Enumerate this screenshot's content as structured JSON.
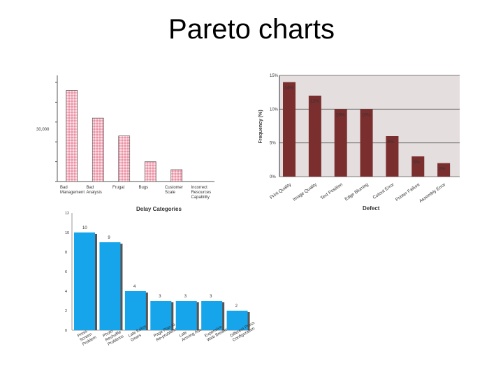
{
  "title": "Pareto charts",
  "chart_data": [
    {
      "type": "bar",
      "title": "",
      "categories": [
        "Bad Management",
        "Bad Analysis",
        "Frugal",
        "Bugs",
        "Customer Scale",
        "Incorrect Resources Capability"
      ],
      "tick_labels": [
        "Bad\nManagement",
        "Bad\nAnalysis",
        "Frugal",
        "Bugs",
        "Customer\nScale",
        "Incorrect\nResources\nCapability"
      ],
      "values": [
        92,
        64,
        46,
        20,
        12,
        0
      ],
      "ylim": [
        0,
        200
      ],
      "ylabel": "30,000",
      "bar_color": "#f4b8c4",
      "grid": false,
      "note": "estimated pink pattern bars"
    },
    {
      "type": "bar",
      "title": "",
      "categories": [
        "Print Quality",
        "Image Quality",
        "Text Position",
        "Edge Blurring",
        "Cutout Error",
        "Printer Failure",
        "Assembly Error"
      ],
      "values": [
        14,
        12,
        10,
        10,
        6,
        3,
        2
      ],
      "data_labels": [
        "14%",
        "12%",
        "10%",
        "10%",
        "6%",
        "3%",
        "2%"
      ],
      "ylim": [
        0,
        15
      ],
      "yticks": [
        "0%",
        "5%",
        "10%",
        "15%"
      ],
      "xlabel": "Defect",
      "ylabel": "Frequency (%)",
      "bar_color": "#7a2e2e",
      "bg_color": "#e5dede",
      "grid": true
    },
    {
      "type": "bar",
      "title": "Delay Categories",
      "categories": [
        "Press Screen Problems",
        "Photo Reshuffle Problems",
        "Late Editor Gears",
        "Page Plan Re-Problems",
        "Late Arriving Ads",
        "Expensive Web Breaks",
        "Different Screen Configuration"
      ],
      "tick_labels": [
        "Press\nScreen\nProblem",
        "Photo\nReshuffle\nProblems",
        "Late Editor\nGears",
        "Page Plan to\nRe-problems",
        "Late\nArriving Ads",
        "Expensive\nWeb Breaks",
        "Different Press\nConfiguration"
      ],
      "values": [
        10,
        9,
        4,
        3,
        3,
        3,
        2
      ],
      "data_labels": [
        "10",
        "9",
        "4",
        "3",
        "3",
        "3",
        "2"
      ],
      "ylim": [
        0,
        12
      ],
      "yticks": [
        "0",
        "2",
        "4",
        "6",
        "8",
        "10",
        "12"
      ],
      "bar_color": "#16a4ea",
      "grid": false
    }
  ]
}
